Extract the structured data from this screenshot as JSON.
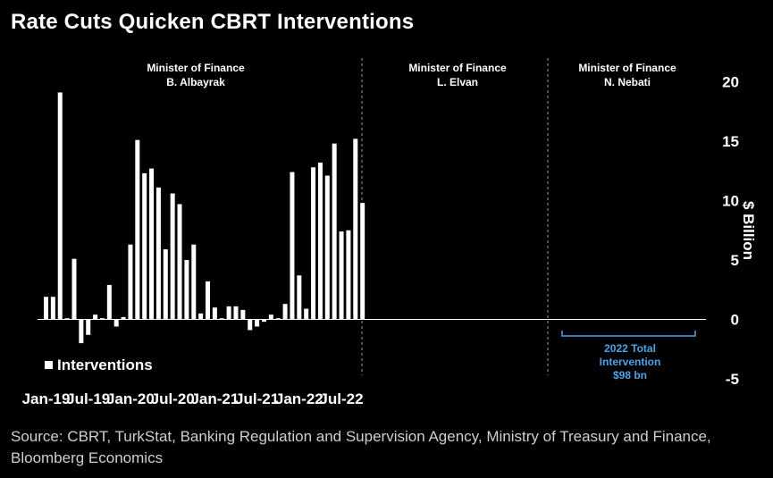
{
  "title": "Rate Cuts Quicken CBRT Interventions",
  "source": "Source: CBRT, TurkStat, Banking Regulation and Supervision Agency, Ministry of Treasury and Finance, Bloomberg Economics",
  "colors": {
    "background": "#000000",
    "bars": "#ffffff",
    "annotation": "#4da3e6",
    "divider": "#9a9a9a"
  },
  "periods": [
    {
      "line1": "Minister of Finance",
      "line2": "B. Albayrak"
    },
    {
      "line1": "Minister of Finance",
      "line2": "L. Elvan"
    },
    {
      "line1": "Minister of Finance",
      "line2": "N. Nebati"
    }
  ],
  "annotation": {
    "line1": "2022 Total",
    "line2": "Intervention",
    "line3": "$98 bn"
  },
  "legend": {
    "label": "Interventions"
  },
  "chart_data": {
    "type": "bar",
    "title": "Rate Cuts Quicken CBRT Interventions",
    "ylabel": "$ Billion",
    "ylim": [
      -5,
      20
    ],
    "yticks": [
      -5,
      0,
      5,
      10,
      15,
      20
    ],
    "x_tick_labels": [
      "Jan-19",
      "Jul-19",
      "Jan-20",
      "Jul-20",
      "Jan-21",
      "Jul-21",
      "Jan-22",
      "Jul-22"
    ],
    "y_axis_position": "right",
    "legend_position": "bottom-left",
    "grid": false,
    "categories": [
      "Jan-19",
      "Feb-19",
      "Mar-19",
      "Apr-19",
      "May-19",
      "Jun-19",
      "Jul-19",
      "Aug-19",
      "Sep-19",
      "Oct-19",
      "Nov-19",
      "Dec-19",
      "Jan-20",
      "Feb-20",
      "Mar-20",
      "Apr-20",
      "May-20",
      "Jun-20",
      "Jul-20",
      "Aug-20",
      "Sep-20",
      "Oct-20",
      "Nov-20",
      "Dec-20",
      "Jan-21",
      "Feb-21",
      "Mar-21",
      "Apr-21",
      "May-21",
      "Jun-21",
      "Jul-21",
      "Aug-21",
      "Sep-21",
      "Oct-21",
      "Nov-21",
      "Dec-21",
      "Jan-22",
      "Feb-22",
      "Mar-22",
      "Apr-22",
      "May-22",
      "Jun-22",
      "Jul-22",
      "Aug-22",
      "Sep-22",
      "Oct-22"
    ],
    "series": [
      {
        "name": "Interventions",
        "values": [
          1.9,
          1.9,
          19.1,
          0.1,
          5.1,
          -2.0,
          -1.3,
          0.4,
          0.1,
          2.9,
          -0.6,
          0.2,
          6.3,
          15.1,
          12.3,
          12.7,
          11.1,
          5.9,
          10.6,
          9.7,
          5.0,
          6.3,
          0.5,
          3.2,
          1.0,
          0.1,
          1.1,
          1.1,
          0.8,
          -0.9,
          -0.6,
          -0.2,
          0.4,
          0.1,
          1.3,
          12.4,
          3.7,
          0.9,
          12.8,
          13.2,
          12.1,
          14.8,
          7.4,
          7.5,
          15.2,
          9.8
        ]
      }
    ]
  }
}
